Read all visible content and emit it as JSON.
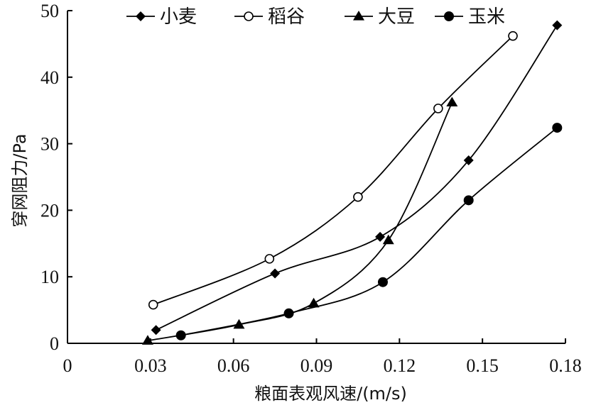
{
  "chart_data": {
    "type": "line",
    "xlabel": "粮面表观风速/(m/s)",
    "ylabel": "穿网阻力/Pa",
    "xlim": [
      0,
      0.18
    ],
    "ylim": [
      0,
      50
    ],
    "xticks": [
      0,
      0.03,
      0.06,
      0.09,
      0.12,
      0.15,
      0.18
    ],
    "xtick_labels": [
      "0",
      "0.03",
      "0.06",
      "0.09",
      "0.12",
      "0.15",
      "0.18"
    ],
    "yticks": [
      0,
      10,
      20,
      30,
      40,
      50
    ],
    "ytick_labels": [
      "0",
      "10",
      "20",
      "30",
      "40",
      "50"
    ],
    "grid": false,
    "legend_position": "top",
    "series": [
      {
        "name": "小麦",
        "marker": "diamond-filled",
        "x": [
          0.032,
          0.075,
          0.113,
          0.145,
          0.177
        ],
        "y": [
          2.0,
          10.5,
          16.0,
          27.5,
          47.8
        ]
      },
      {
        "name": "稻谷",
        "marker": "circle-open",
        "x": [
          0.031,
          0.073,
          0.105,
          0.134,
          0.161
        ],
        "y": [
          5.8,
          12.7,
          22.0,
          35.3,
          46.2
        ]
      },
      {
        "name": "大豆",
        "marker": "triangle-filled",
        "x": [
          0.029,
          0.062,
          0.089,
          0.116,
          0.139
        ],
        "y": [
          0.4,
          2.8,
          6.0,
          15.5,
          36.2
        ]
      },
      {
        "name": "玉米",
        "marker": "circle-filled",
        "x": [
          0.041,
          0.08,
          0.114,
          0.145,
          0.177
        ],
        "y": [
          1.2,
          4.5,
          9.2,
          21.5,
          32.4
        ]
      }
    ]
  }
}
